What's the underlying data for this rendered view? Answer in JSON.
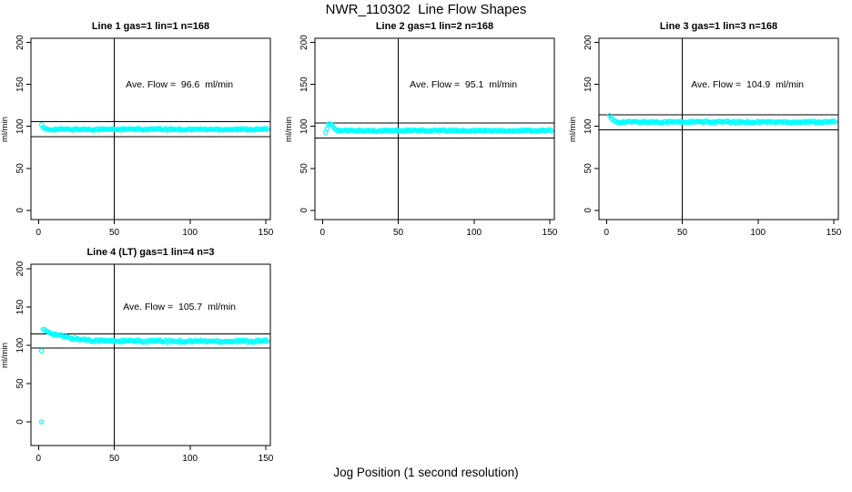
{
  "page": {
    "title": "NWR_110302  Line Flow Shapes",
    "xlabel": "Jog Position (1 second resolution)",
    "background": "#ffffff"
  },
  "colors": {
    "points": "#00ffff",
    "axis": "#000000"
  },
  "chart_data": [
    {
      "type": "scatter",
      "title": "Line 1 gas=1 lin=1 n=168",
      "gas": 1,
      "lin": 1,
      "n": 168,
      "ave_flow": 96.6,
      "annotation": "Ave. Flow =  96.6  ml/min",
      "annotation_pos": {
        "x": 93,
        "y": 150
      },
      "ylabel": "ml/min",
      "xticks": [
        0,
        50,
        100,
        150
      ],
      "yticks": [
        0,
        50,
        100,
        150,
        200
      ],
      "xlim": [
        -5,
        153
      ],
      "ylim": [
        -11,
        205
      ],
      "grid": false,
      "legend": "none",
      "marker": "open-circle",
      "vline_x": 50,
      "hlines": [
        105.6,
        87.6
      ],
      "series": [
        {
          "name": "flow",
          "outliers": [
            [
              2,
              102
            ]
          ],
          "anchors": [
            [
              3,
              98
            ],
            [
              5,
              96.8
            ]
          ],
          "flat": {
            "x_start": 6,
            "x_end": 151,
            "step": 1,
            "y": 96.5
          },
          "jitter": 1.0
        }
      ]
    },
    {
      "type": "scatter",
      "title": "Line 2 gas=1 lin=2 n=168",
      "gas": 1,
      "lin": 2,
      "n": 168,
      "ave_flow": 95.1,
      "annotation": "Ave. Flow =  95.1  ml/min",
      "annotation_pos": {
        "x": 93,
        "y": 150
      },
      "ylabel": "ml/min",
      "xticks": [
        0,
        50,
        100,
        150
      ],
      "yticks": [
        0,
        50,
        100,
        150,
        200
      ],
      "xlim": [
        -5,
        153
      ],
      "ylim": [
        -11,
        205
      ],
      "grid": false,
      "legend": "none",
      "marker": "open-circle",
      "vline_x": 50,
      "hlines": [
        104.1,
        86.1
      ],
      "series": [
        {
          "name": "flow",
          "outliers": [
            [
              2,
              93
            ]
          ],
          "anchors": [
            [
              3,
              97
            ],
            [
              4,
              102
            ],
            [
              5,
              103
            ],
            [
              6,
              102
            ],
            [
              7,
              100
            ],
            [
              8,
              98
            ],
            [
              9,
              96.5
            ],
            [
              10,
              95.5
            ],
            [
              11,
              95.2
            ]
          ],
          "flat": {
            "x_start": 12,
            "x_end": 151,
            "step": 1,
            "y": 95
          },
          "jitter": 1.0
        }
      ]
    },
    {
      "type": "scatter",
      "title": "Line 3 gas=1 lin=3 n=168",
      "gas": 1,
      "lin": 3,
      "n": 168,
      "ave_flow": 104.9,
      "annotation": "Ave. Flow =  104.9  ml/min",
      "annotation_pos": {
        "x": 93,
        "y": 150
      },
      "ylabel": "ml/min",
      "xticks": [
        0,
        50,
        100,
        150
      ],
      "yticks": [
        0,
        50,
        100,
        150,
        200
      ],
      "xlim": [
        -5,
        153
      ],
      "ylim": [
        -11,
        205
      ],
      "grid": false,
      "legend": "none",
      "marker": "open-circle",
      "vline_x": 50,
      "hlines": [
        113.9,
        95.9
      ],
      "series": [
        {
          "name": "flow",
          "outliers": [
            [
              2,
              113
            ]
          ],
          "anchors": [
            [
              3,
              109.5
            ],
            [
              4,
              107.5
            ],
            [
              5,
              106.5
            ],
            [
              6,
              106
            ]
          ],
          "flat": {
            "x_start": 7,
            "x_end": 151,
            "step": 1,
            "y": 105.3
          },
          "jitter": 1.1
        }
      ]
    },
    {
      "type": "scatter",
      "title": "Line 4 (LT) gas=1 lin=4 n=3",
      "gas": 1,
      "lin": 4,
      "n": 3,
      "ave_flow": 105.7,
      "annotation": "Ave. Flow =  105.7  ml/min",
      "annotation_pos": {
        "x": 93,
        "y": 150
      },
      "ylabel": "ml/min",
      "xticks": [
        0,
        50,
        100,
        150
      ],
      "yticks": [
        0,
        50,
        100,
        150,
        200
      ],
      "xlim": [
        -5,
        153
      ],
      "ylim": [
        -31,
        206
      ],
      "grid": false,
      "legend": "none",
      "marker": "open-circle",
      "vline_x": 50,
      "hlines": [
        114.7,
        96.7
      ],
      "series": [
        {
          "name": "flow",
          "outliers": [
            [
              2,
              0
            ],
            [
              2,
              93
            ]
          ],
          "anchors": [
            [
              3,
              120
            ],
            [
              5,
              118.5
            ],
            [
              8,
              116.5
            ],
            [
              11,
              114.5
            ],
            [
              14,
              112.8
            ],
            [
              17,
              111.3
            ],
            [
              20,
              110
            ],
            [
              24,
              108.7
            ],
            [
              28,
              107.8
            ],
            [
              33,
              107
            ],
            [
              38,
              106.4
            ],
            [
              45,
              105.9
            ],
            [
              55,
              105.6
            ],
            [
              65,
              105.4
            ]
          ],
          "flat": {
            "x_start": 66,
            "x_end": 151,
            "step": 1,
            "y": 105.4
          },
          "jitter": 1.6
        }
      ]
    }
  ]
}
